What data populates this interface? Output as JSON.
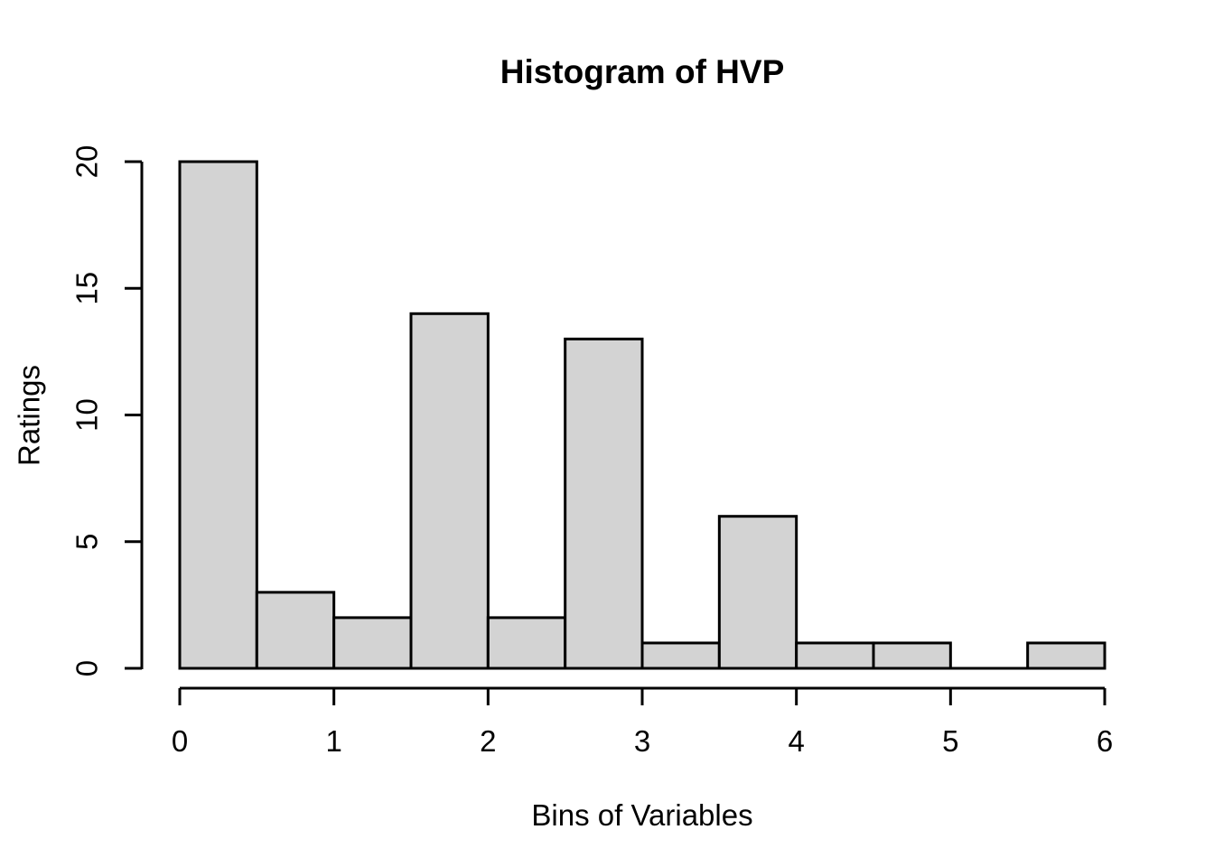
{
  "chart_data": {
    "type": "bar",
    "subtype": "histogram",
    "title": "Histogram of HVP",
    "xlabel": "Bins of Variables",
    "ylabel": "Ratings",
    "breaks": [
      0,
      0.5,
      1,
      1.5,
      2,
      2.5,
      3,
      3.5,
      4,
      4.5,
      5,
      5.5,
      6
    ],
    "counts": [
      20,
      3,
      2,
      14,
      2,
      13,
      1,
      6,
      1,
      1,
      0,
      1
    ],
    "x_ticks": [
      0,
      1,
      2,
      3,
      4,
      5,
      6
    ],
    "y_ticks": [
      0,
      5,
      10,
      15,
      20
    ],
    "xlim": [
      0,
      6
    ],
    "ylim": [
      0,
      20
    ],
    "grid": false,
    "legend": "none",
    "colors": {
      "bar_fill": "#d3d3d3",
      "bar_border": "#000000",
      "axis": "#000000",
      "text": "#000000",
      "background": "#ffffff"
    }
  }
}
